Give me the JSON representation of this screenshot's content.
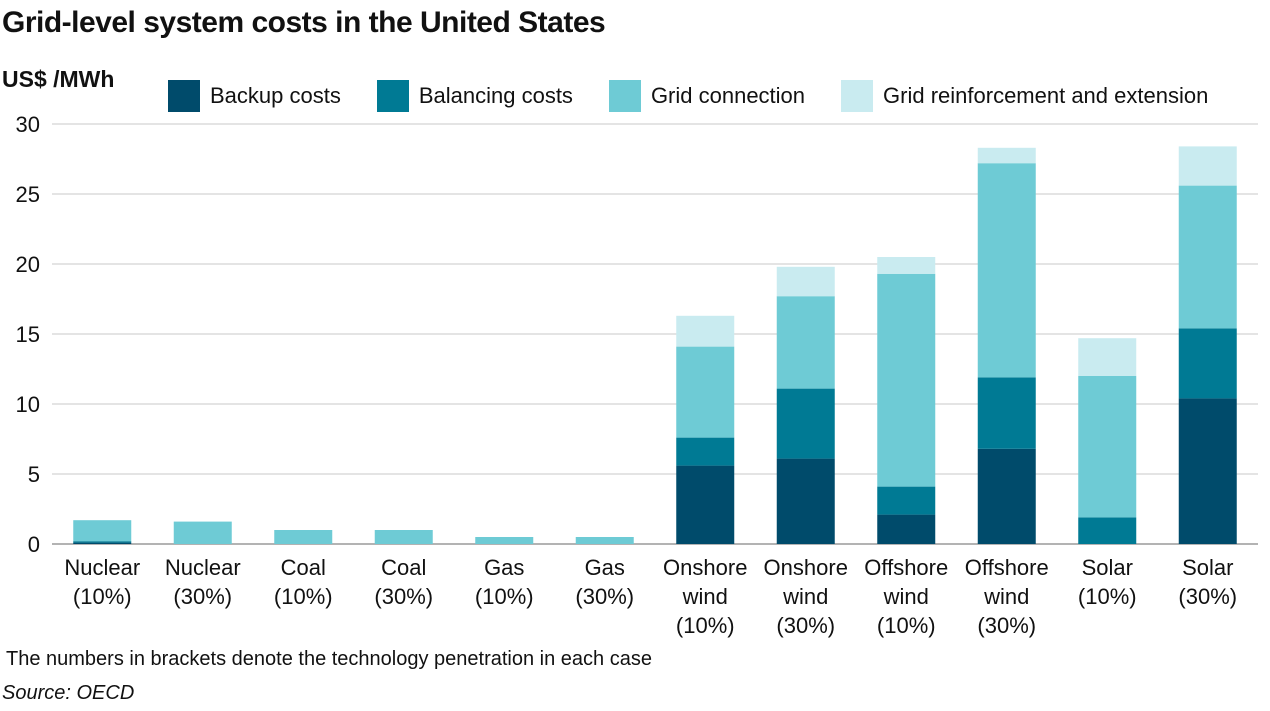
{
  "chart_data": {
    "type": "bar",
    "stacked": true,
    "title": "Grid-level system costs in the United States",
    "ylabel": "US$ /MWh",
    "xlabel": "",
    "ylim": [
      0,
      30
    ],
    "yticks": [
      0,
      5,
      10,
      15,
      20,
      25,
      30
    ],
    "grid": true,
    "legend_position": "top",
    "categories": [
      [
        "Nuclear",
        "(10%)"
      ],
      [
        "Nuclear",
        "(30%)"
      ],
      [
        "Coal",
        "(10%)"
      ],
      [
        "Coal",
        "(30%)"
      ],
      [
        "Gas",
        "(10%)"
      ],
      [
        "Gas",
        "(30%)"
      ],
      [
        "Onshore",
        "wind",
        "(10%)"
      ],
      [
        "Onshore",
        "wind",
        "(30%)"
      ],
      [
        "Offshore",
        "wind",
        "(10%)"
      ],
      [
        "Offshore",
        "wind",
        "(30%)"
      ],
      [
        "Solar",
        "(10%)"
      ],
      [
        "Solar",
        "(30%)"
      ]
    ],
    "series": [
      {
        "name": "Backup costs",
        "color": "#004b6b",
        "values": [
          0.1,
          0,
          0,
          0,
          0,
          0,
          5.6,
          6.1,
          2.1,
          6.8,
          0,
          10.4
        ]
      },
      {
        "name": "Balancing costs",
        "color": "#007a94",
        "values": [
          0.1,
          0,
          0,
          0,
          0,
          0,
          2.0,
          5.0,
          2.0,
          5.1,
          1.9,
          5.0
        ]
      },
      {
        "name": "Grid connection",
        "color": "#6ecbd5",
        "values": [
          1.5,
          1.6,
          1.0,
          1.0,
          0.5,
          0.5,
          6.5,
          6.6,
          15.2,
          15.3,
          10.1,
          10.2
        ]
      },
      {
        "name": "Grid reinforcement and extension",
        "color": "#c9ebf0",
        "values": [
          0,
          0,
          0,
          0,
          0,
          0,
          2.2,
          2.1,
          1.2,
          1.1,
          2.7,
          2.8
        ]
      }
    ]
  },
  "note": "The numbers in brackets denote the technology penetration in each case",
  "source": "Source: OECD"
}
